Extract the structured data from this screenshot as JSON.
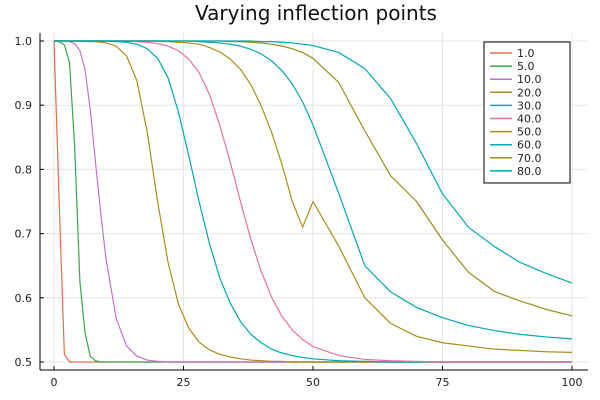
{
  "chart_data": {
    "type": "line",
    "title": "Varying inflection points",
    "xlabel": "",
    "ylabel": "",
    "xlim": [
      0,
      100
    ],
    "ylim": [
      0.5,
      1.0
    ],
    "grid": true,
    "legend_position": "top-right",
    "x_ticks": [
      {
        "value": 0,
        "label": "0"
      },
      {
        "value": 25,
        "label": "25"
      },
      {
        "value": 50,
        "label": "50"
      },
      {
        "value": 75,
        "label": "75"
      },
      {
        "value": 100,
        "label": "100"
      }
    ],
    "y_ticks": [
      {
        "value": 0.5,
        "label": "0.5"
      },
      {
        "value": 0.6,
        "label": "0.6"
      },
      {
        "value": 0.7,
        "label": "0.7"
      },
      {
        "value": 0.8,
        "label": "0.8"
      },
      {
        "value": 0.9,
        "label": "0.9"
      },
      {
        "value": 1.0,
        "label": "1.0"
      }
    ],
    "x": [
      0,
      1,
      2,
      3,
      4,
      5,
      6,
      7,
      8,
      9,
      10,
      12,
      14,
      16,
      18,
      20,
      22,
      24,
      26,
      28,
      30,
      32,
      34,
      36,
      38,
      40,
      42,
      44,
      46,
      48,
      50,
      55,
      60,
      65,
      70,
      75,
      80,
      85,
      90,
      95,
      100
    ],
    "series": [
      {
        "name": "1.0",
        "color": "#e26f46",
        "values": [
          1.0,
          0.75,
          0.512,
          0.5,
          0.5,
          0.5,
          0.5,
          0.5,
          0.5,
          0.5,
          0.5,
          0.5,
          0.5,
          0.5,
          0.5,
          0.5,
          0.5,
          0.5,
          0.5,
          0.5,
          0.5,
          0.5,
          0.5,
          0.5,
          0.5,
          0.5,
          0.5,
          0.5,
          0.5,
          0.5,
          0.5,
          0.5,
          0.5,
          0.5,
          0.5,
          0.5,
          0.5,
          0.5,
          0.5,
          0.5,
          0.5
        ]
      },
      {
        "name": "5.0",
        "color": "#3da44d",
        "values": [
          1.0,
          0.999,
          0.994,
          0.966,
          0.834,
          0.625,
          0.545,
          0.509,
          0.502,
          0.5,
          0.5,
          0.5,
          0.5,
          0.5,
          0.5,
          0.5,
          0.5,
          0.5,
          0.5,
          0.5,
          0.5,
          0.5,
          0.5,
          0.5,
          0.5,
          0.5,
          0.5,
          0.5,
          0.5,
          0.5,
          0.5,
          0.5,
          0.5,
          0.5,
          0.5,
          0.5,
          0.5,
          0.5,
          0.5,
          0.5,
          0.5
        ]
      },
      {
        "name": "10.0",
        "color": "#c271d2",
        "values": [
          1.0,
          1.0,
          1.0,
          0.999,
          0.996,
          0.985,
          0.955,
          0.893,
          0.812,
          0.733,
          0.663,
          0.568,
          0.525,
          0.509,
          0.503,
          0.501,
          0.5,
          0.5,
          0.5,
          0.5,
          0.5,
          0.5,
          0.5,
          0.5,
          0.5,
          0.5,
          0.5,
          0.5,
          0.5,
          0.5,
          0.5,
          0.5,
          0.5,
          0.5,
          0.5,
          0.5,
          0.5,
          0.5,
          0.5,
          0.5,
          0.5
        ]
      },
      {
        "name": "20.0",
        "color": "#ac8d18",
        "values": [
          1.0,
          1.0,
          1.0,
          1.0,
          1.0,
          1.0,
          1.0,
          0.999,
          0.999,
          0.998,
          0.997,
          0.992,
          0.977,
          0.938,
          0.858,
          0.75,
          0.656,
          0.591,
          0.553,
          0.531,
          0.519,
          0.512,
          0.508,
          0.505,
          0.503,
          0.502,
          0.501,
          0.501,
          0.5,
          0.5,
          0.5,
          0.5,
          0.5,
          0.5,
          0.5,
          0.5,
          0.5,
          0.5,
          0.5,
          0.5,
          0.5
        ]
      },
      {
        "name": "30.0",
        "color": "#00a9ad",
        "values": [
          1.0,
          1.0,
          1.0,
          1.0,
          1.0,
          1.0,
          1.0,
          1.0,
          1.0,
          1.0,
          1.0,
          0.999,
          0.998,
          0.995,
          0.988,
          0.973,
          0.943,
          0.89,
          0.822,
          0.75,
          0.685,
          0.631,
          0.592,
          0.563,
          0.543,
          0.53,
          0.52,
          0.514,
          0.51,
          0.507,
          0.505,
          0.502,
          0.501,
          0.5,
          0.5,
          0.5,
          0.5,
          0.5,
          0.5,
          0.5,
          0.5
        ]
      },
      {
        "name": "40.0",
        "color": "#e96fa3",
        "values": [
          1.0,
          1.0,
          1.0,
          1.0,
          1.0,
          1.0,
          1.0,
          1.0,
          1.0,
          1.0,
          1.0,
          1.0,
          1.0,
          0.999,
          0.998,
          0.996,
          0.992,
          0.985,
          0.972,
          0.951,
          0.917,
          0.869,
          0.812,
          0.75,
          0.691,
          0.641,
          0.601,
          0.571,
          0.55,
          0.535,
          0.524,
          0.51,
          0.504,
          0.502,
          0.501,
          0.5,
          0.5,
          0.5,
          0.5,
          0.5,
          0.5
        ]
      },
      {
        "name": "50.0",
        "color": "#ac8d18",
        "values": [
          1.0,
          1.0,
          1.0,
          1.0,
          1.0,
          1.0,
          1.0,
          1.0,
          1.0,
          1.0,
          1.0,
          1.0,
          1.0,
          1.0,
          1.0,
          1.0,
          0.999,
          0.998,
          0.997,
          0.995,
          0.99,
          0.983,
          0.972,
          0.956,
          0.932,
          0.899,
          0.858,
          0.808,
          0.75,
          0.71,
          0.75,
          0.68,
          0.6,
          0.56,
          0.54,
          0.53,
          0.525,
          0.52,
          0.518,
          0.516,
          0.515
        ]
      },
      {
        "name": "60.0",
        "color": "#00a9ad",
        "values": [
          1.0,
          1.0,
          1.0,
          1.0,
          1.0,
          1.0,
          1.0,
          1.0,
          1.0,
          1.0,
          1.0,
          1.0,
          1.0,
          1.0,
          1.0,
          1.0,
          1.0,
          1.0,
          1.0,
          0.999,
          0.998,
          0.997,
          0.995,
          0.992,
          0.987,
          0.98,
          0.969,
          0.954,
          0.933,
          0.905,
          0.869,
          0.762,
          0.65,
          0.609,
          0.585,
          0.569,
          0.557,
          0.549,
          0.543,
          0.539,
          0.536
        ]
      },
      {
        "name": "70.0",
        "color": "#9a8d1a",
        "values": [
          1.0,
          1.0,
          1.0,
          1.0,
          1.0,
          1.0,
          1.0,
          1.0,
          1.0,
          1.0,
          1.0,
          1.0,
          1.0,
          1.0,
          1.0,
          1.0,
          1.0,
          1.0,
          1.0,
          1.0,
          1.0,
          1.0,
          0.999,
          0.999,
          0.998,
          0.997,
          0.995,
          0.992,
          0.988,
          0.982,
          0.973,
          0.935,
          0.86,
          0.79,
          0.75,
          0.69,
          0.64,
          0.61,
          0.595,
          0.582,
          0.572
        ]
      },
      {
        "name": "80.0",
        "color": "#00a9b8",
        "values": [
          1.0,
          1.0,
          1.0,
          1.0,
          1.0,
          1.0,
          1.0,
          1.0,
          1.0,
          1.0,
          1.0,
          1.0,
          1.0,
          1.0,
          1.0,
          1.0,
          1.0,
          1.0,
          1.0,
          1.0,
          1.0,
          1.0,
          1.0,
          1.0,
          1.0,
          0.999,
          0.999,
          0.998,
          0.997,
          0.995,
          0.993,
          0.982,
          0.957,
          0.91,
          0.84,
          0.762,
          0.71,
          0.68,
          0.655,
          0.638,
          0.623
        ]
      }
    ]
  }
}
